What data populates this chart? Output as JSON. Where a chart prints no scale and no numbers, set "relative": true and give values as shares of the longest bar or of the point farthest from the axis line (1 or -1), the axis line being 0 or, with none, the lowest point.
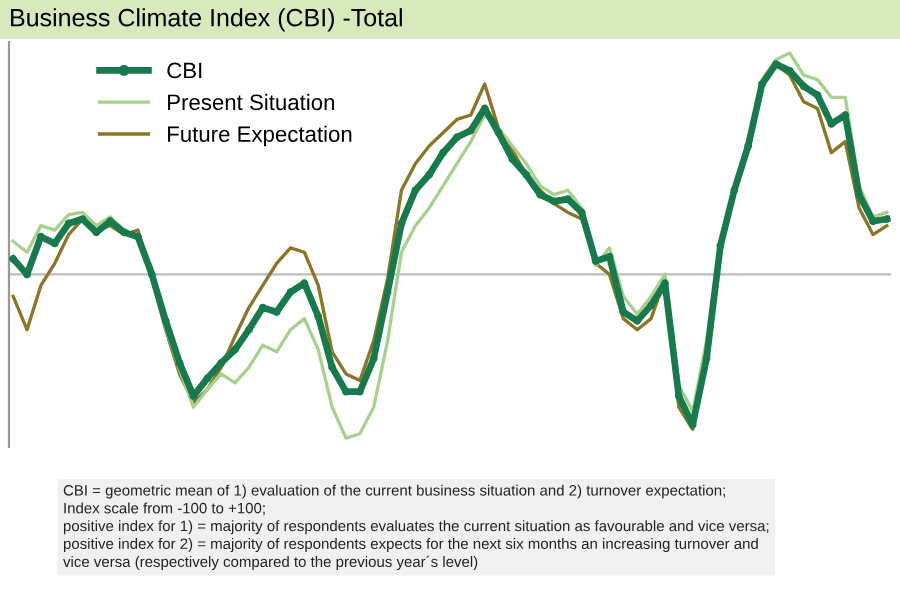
{
  "chart_data": {
    "type": "line",
    "title": "Business Climate Index (CBI) -Total",
    "relative": true,
    "legend": "top left",
    "categories": [
      null,
      null,
      null,
      null,
      null,
      null,
      null,
      null,
      null,
      null,
      null,
      null,
      null,
      null,
      null,
      null,
      null,
      null,
      null,
      null,
      null,
      null,
      null,
      null,
      null,
      null,
      null,
      null,
      null,
      null,
      null,
      null,
      null,
      null,
      null,
      null,
      null,
      null,
      null,
      null,
      null,
      null,
      null,
      null,
      null,
      null,
      null,
      null,
      null,
      null,
      null,
      null,
      null,
      null,
      null,
      null,
      null,
      null,
      null,
      null,
      null,
      null,
      null,
      null
    ],
    "series": [
      {
        "name": "CBI",
        "color": "#167a4c",
        "marker": "circle",
        "values": [
          0.07,
          0,
          0.17,
          0.14,
          0.23,
          0.25,
          0.19,
          0.24,
          0.19,
          0.17,
          0,
          -0.21,
          -0.4,
          -0.55,
          -0.47,
          -0.4,
          -0.34,
          -0.25,
          -0.15,
          -0.17,
          -0.08,
          -0.04,
          -0.19,
          -0.42,
          -0.53,
          -0.53,
          -0.38,
          -0.08,
          0.23,
          0.38,
          0.45,
          0.55,
          0.62,
          0.65,
          0.75,
          0.64,
          0.52,
          0.45,
          0.36,
          0.33,
          0.34,
          0.28,
          0.06,
          0.08,
          -0.17,
          -0.21,
          -0.14,
          -0.04,
          -0.55,
          -0.68,
          -0.38,
          0.13,
          0.38,
          0.58,
          0.86,
          0.95,
          0.92,
          0.85,
          0.81,
          0.68,
          0.72,
          0.36,
          0.24,
          0.25
        ]
      },
      {
        "name": "Present Situation",
        "color": "#a9d18e",
        "values": [
          0.15,
          0.1,
          0.22,
          0.2,
          0.27,
          0.28,
          0.22,
          0.26,
          0.2,
          0.17,
          0.03,
          -0.24,
          -0.43,
          -0.6,
          -0.52,
          -0.45,
          -0.49,
          -0.42,
          -0.32,
          -0.35,
          -0.25,
          -0.2,
          -0.34,
          -0.6,
          -0.74,
          -0.72,
          -0.6,
          -0.3,
          0.1,
          0.22,
          0.3,
          0.4,
          0.5,
          0.6,
          0.72,
          0.66,
          0.58,
          0.5,
          0.4,
          0.36,
          0.38,
          0.3,
          0.04,
          0.12,
          -0.1,
          -0.18,
          -0.1,
          0,
          -0.5,
          -0.62,
          -0.3,
          0.15,
          0.4,
          0.6,
          0.88,
          0.97,
          1,
          0.9,
          0.88,
          0.8,
          0.8,
          0.4,
          0.26,
          0.28
        ]
      },
      {
        "name": "Future Expectation",
        "color": "#8c7526",
        "values": [
          -0.1,
          -0.25,
          -0.05,
          0.05,
          0.18,
          0.25,
          0.2,
          0.22,
          0.18,
          0.2,
          -0.02,
          -0.25,
          -0.45,
          -0.58,
          -0.52,
          -0.42,
          -0.28,
          -0.15,
          -0.05,
          0.05,
          0.12,
          0.1,
          -0.05,
          -0.35,
          -0.45,
          -0.48,
          -0.3,
          -0.02,
          0.38,
          0.5,
          0.58,
          0.64,
          0.7,
          0.72,
          0.86,
          0.66,
          0.56,
          0.45,
          0.38,
          0.32,
          0.28,
          0.25,
          0.05,
          0,
          -0.2,
          -0.25,
          -0.2,
          -0.02,
          -0.6,
          -0.7,
          -0.4,
          0.1,
          0.38,
          0.58,
          0.86,
          0.95,
          0.9,
          0.78,
          0.75,
          0.55,
          0.6,
          0.3,
          0.18,
          0.22
        ]
      }
    ],
    "annotations": [
      "CBI = geometric mean of 1) evaluation of the current business situation and 2) turnover expectation;\nIndex scale from -100 to +100;\npositive index for 1) = majority of respondents evaluates the current situation as favourable and vice versa;\npositive index for 2) = majority of respondents expects for the next six months an increasing turnover and\nvice versa (respectively compared to the previous year´s level)"
    ]
  }
}
